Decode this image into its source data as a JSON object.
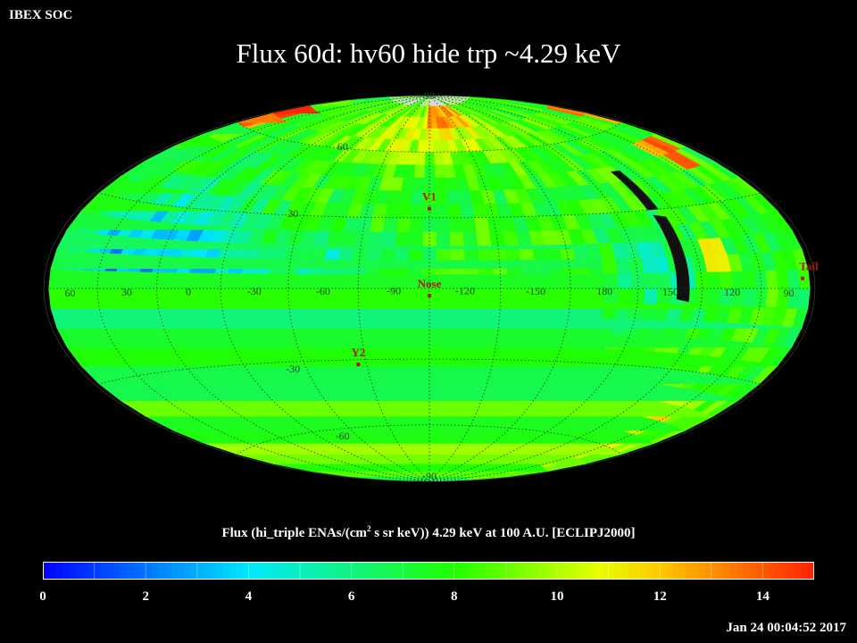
{
  "header": {
    "brand": "IBEX SOC",
    "title": "Flux   60d: hv60 hide trp ~4.29 keV"
  },
  "map": {
    "projection": "Hammer-Aitoff",
    "coordinate_frame": "ECLIPJ2000",
    "background": "#000000",
    "grid_color": "#1e3a1e",
    "lon_labels": [
      {
        "text": "60",
        "lon": 60
      },
      {
        "text": "30",
        "lon": 30
      },
      {
        "text": "0",
        "lon": 0
      },
      {
        "text": "-30",
        "lon": -30
      },
      {
        "text": "-60",
        "lon": -60
      },
      {
        "text": "-90",
        "lon": -90
      },
      {
        "text": "-120",
        "lon": -120
      },
      {
        "text": "-150",
        "lon": -150
      },
      {
        "text": "180",
        "lon": 180
      },
      {
        "text": "150",
        "lon": 150
      },
      {
        "text": "120",
        "lon": 120
      },
      {
        "text": "90",
        "lon": 90
      }
    ],
    "lat_labels": [
      {
        "text": "90",
        "lat": 90
      },
      {
        "text": "60",
        "lat": 60
      },
      {
        "text": "30",
        "lat": 30
      },
      {
        "text": "-30",
        "lat": -30
      },
      {
        "text": "-60",
        "lat": -60
      },
      {
        "text": "-90",
        "lat": -90
      }
    ],
    "markers": [
      {
        "label": "V1",
        "lon": -105,
        "lat": 34
      },
      {
        "label": "Nose",
        "lon": -105,
        "lat": -3
      },
      {
        "label": "Y2",
        "lon": -71,
        "lat": -32
      },
      {
        "label": "Tail",
        "lon": 75,
        "lat": 3
      }
    ],
    "marker_color": "#b01818",
    "flux_regions": [
      {
        "lon": 10,
        "lat": 0,
        "rlon": 38,
        "rlat": 33,
        "value": 2.4
      },
      {
        "lon": 35,
        "lat": 10,
        "rlon": 28,
        "rlat": 20,
        "value": 2.8
      },
      {
        "lon": -20,
        "lat": -10,
        "rlon": 22,
        "rlat": 20,
        "value": 3.1
      },
      {
        "lon": -60,
        "lat": 8,
        "rlon": 25,
        "rlat": 18,
        "value": 5.4
      },
      {
        "lon": 155,
        "lat": 8,
        "rlon": 22,
        "rlat": 16,
        "value": 5.6
      },
      {
        "lon": -110,
        "lat": 70,
        "rlon": 80,
        "rlat": 16,
        "value": 10.6
      },
      {
        "lon": 120,
        "lat": -60,
        "rlon": 40,
        "rlat": 18,
        "value": 10.8
      }
    ],
    "flux_hotspots": [
      {
        "lon": 95,
        "lat": 50,
        "value": 13.9
      },
      {
        "lon": 70,
        "lat": 67,
        "value": 14.6
      },
      {
        "lon": 130,
        "lat": -55,
        "value": 13.3
      },
      {
        "lon": 112,
        "lat": -43,
        "value": 12.0
      },
      {
        "lon": -95,
        "lat": -26,
        "value": 12.8
      },
      {
        "lon": -75,
        "lat": -16,
        "value": 12.2
      },
      {
        "lon": 125,
        "lat": 13,
        "value": 12.8
      },
      {
        "lon": -130,
        "lat": 76,
        "value": 13.2
      }
    ],
    "no_data_bands": [
      {
        "lon": 141,
        "lat_min": -5,
        "lat_max": 28
      },
      {
        "lon": 142,
        "lat_min": 30,
        "lat_max": 46
      }
    ],
    "no_data_color": "#111111",
    "polar_cap_color": "#d8d8d8"
  },
  "colorbar": {
    "label_prefix": "Flux (hi_triple ENAs/(cm",
    "label_sup": "2",
    "label_suffix": " s sr keV))  4.29 keV at 100 A.U. [ECLIPJ2000]",
    "min": 0,
    "max": 15,
    "ticks": [
      "0",
      "2",
      "4",
      "6",
      "8",
      "10",
      "12",
      "14"
    ],
    "tick_values": [
      0,
      2,
      4,
      6,
      8,
      10,
      12,
      14
    ],
    "stops": [
      {
        "value": 0,
        "color": "#0000ff"
      },
      {
        "value": 4,
        "color": "#00e8ff"
      },
      {
        "value": 8,
        "color": "#20ff00"
      },
      {
        "value": 10.8,
        "color": "#e6ff00"
      },
      {
        "value": 12,
        "color": "#ffc800"
      },
      {
        "value": 15,
        "color": "#ff2000"
      }
    ]
  },
  "footer": {
    "timestamp": "Jan 24 00:04:52 2017"
  }
}
